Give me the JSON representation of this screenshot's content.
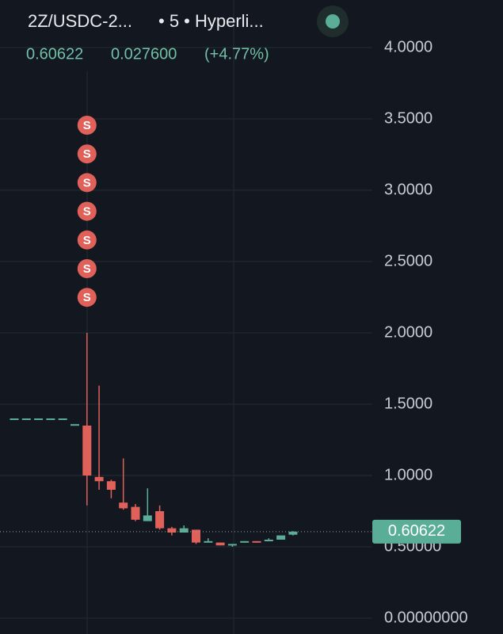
{
  "chart_data": {
    "type": "candlestick",
    "symbol": "2Z/USDC-2...",
    "interval_source": "• 5 • Hyperli...",
    "last": "0.60622",
    "change": "0.027600",
    "change_pct": "(+4.77%)",
    "categories": [
      null,
      null,
      null,
      null,
      null,
      null,
      null,
      null,
      null,
      null,
      null,
      null,
      null,
      null,
      null,
      null,
      null,
      null,
      null,
      null,
      null,
      null,
      null,
      null
    ],
    "open": [
      1.4,
      1.4,
      1.4,
      1.4,
      1.4,
      1.36,
      1.35,
      0.99,
      0.96,
      0.81,
      0.78,
      0.68,
      0.75,
      0.63,
      0.6,
      0.62,
      0.53,
      0.53,
      0.51,
      0.53,
      0.54,
      0.54,
      0.55,
      0.585
    ],
    "high": [
      1.4,
      1.4,
      1.4,
      1.4,
      1.4,
      1.36,
      2.0,
      1.63,
      0.97,
      1.12,
      0.8,
      0.91,
      0.79,
      0.64,
      0.65,
      0.62,
      0.56,
      0.53,
      0.52,
      0.54,
      0.54,
      0.56,
      0.58,
      0.61
    ],
    "low": [
      1.4,
      1.4,
      1.4,
      1.4,
      1.4,
      1.36,
      0.79,
      0.9,
      0.84,
      0.76,
      0.68,
      0.68,
      0.62,
      0.58,
      0.6,
      0.52,
      0.53,
      0.51,
      0.5,
      0.53,
      0.53,
      0.54,
      0.55,
      0.58
    ],
    "close": [
      1.4,
      1.4,
      1.4,
      1.4,
      1.4,
      1.36,
      1.0,
      0.96,
      0.9,
      0.77,
      0.69,
      0.72,
      0.63,
      0.6,
      0.63,
      0.53,
      0.54,
      0.51,
      0.52,
      0.54,
      0.53,
      0.55,
      0.58,
      0.60622
    ],
    "up_color": "#5aae98",
    "down_color": "#e0605a",
    "sell_markers": {
      "index": 6,
      "labels": [
        "S",
        "S",
        "S",
        "S",
        "S",
        "S",
        "S"
      ]
    },
    "last_price": {
      "value": 0.60622,
      "label": "0.60622"
    },
    "ylim": [
      0,
      4
    ],
    "yticks": [
      {
        "value": 0,
        "label": "0.00000000"
      },
      {
        "value": 0.5,
        "label": "0.50000"
      },
      {
        "value": 1,
        "label": "1.0000"
      },
      {
        "value": 1.5,
        "label": "1.5000"
      },
      {
        "value": 2,
        "label": "2.0000"
      },
      {
        "value": 2.5,
        "label": "2.5000"
      },
      {
        "value": 3,
        "label": "3.0000"
      },
      {
        "value": 3.5,
        "label": "3.5000"
      },
      {
        "value": 4,
        "label": "4.0000"
      }
    ],
    "grid": true
  }
}
